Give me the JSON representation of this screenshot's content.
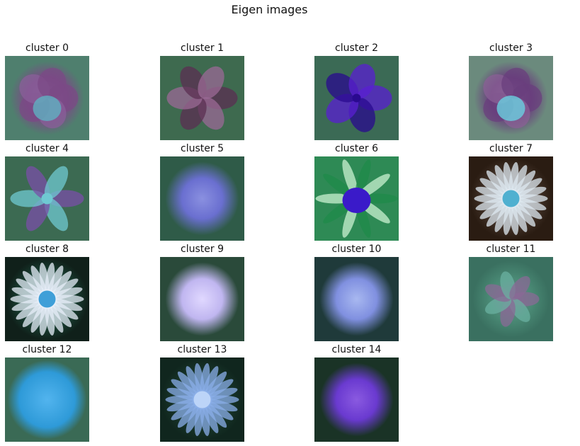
{
  "figure": {
    "title": "Eigen images"
  },
  "clusters": [
    {
      "label": "cluster 0",
      "bg": "#4f7f6e",
      "subject": "flower-purple-mix",
      "colors": [
        "#7b4a86",
        "#5fb0c0",
        "#8a5f9a"
      ]
    },
    {
      "label": "cluster 1",
      "bg": "#3e6a4f",
      "subject": "iris-flower",
      "colors": [
        "#5b2f52",
        "#9b6a95",
        "#6fa58a"
      ]
    },
    {
      "label": "cluster 2",
      "bg": "#3b6a55",
      "subject": "violet-pansy",
      "colors": [
        "#5a1fd1",
        "#2a0a8f",
        "#7ad09c"
      ]
    },
    {
      "label": "cluster 3",
      "bg": "#6b8a7d",
      "subject": "pansy-flower",
      "colors": [
        "#6a3f7d",
        "#6ad0e0",
        "#8a6095"
      ]
    },
    {
      "label": "cluster 4",
      "bg": "#3c6a52",
      "subject": "star-flower",
      "colors": [
        "#7a4fa8",
        "#6fc9d2",
        "#4a7a5a"
      ]
    },
    {
      "label": "cluster 5",
      "bg": "#2f5b48",
      "subject": "round-blur-blue",
      "colors": [
        "#6a6fd0",
        "#8a90e0",
        "#3f6a6a"
      ]
    },
    {
      "label": "cluster 6",
      "bg": "#2e8a55",
      "subject": "blue-bud",
      "colors": [
        "#3a1ac9",
        "#1f8a4a",
        "#c9f0d0"
      ]
    },
    {
      "label": "cluster 7",
      "bg": "#2a1c12",
      "subject": "white-daisy-dark",
      "colors": [
        "#dde8f0",
        "#4fb0d0",
        "#4a3a30"
      ]
    },
    {
      "label": "cluster 8",
      "bg": "#10201a",
      "subject": "white-daisy-blue",
      "colors": [
        "#e6eef8",
        "#3f9fd8",
        "#1a4a3a"
      ]
    },
    {
      "label": "cluster 9",
      "bg": "#2a4a3a",
      "subject": "round-blur-lilac",
      "colors": [
        "#c0b6f0",
        "#e0d8ff",
        "#3f6a55"
      ]
    },
    {
      "label": "cluster 10",
      "bg": "#1f3a3a",
      "subject": "round-blur-periwinkle",
      "colors": [
        "#8090e0",
        "#a8b8f0",
        "#2a4a4a"
      ]
    },
    {
      "label": "cluster 11",
      "bg": "#3a7060",
      "subject": "blurred-mix",
      "colors": [
        "#8a6a95",
        "#6ab0a0",
        "#4a8a75"
      ]
    },
    {
      "label": "cluster 12",
      "bg": "#3a6a55",
      "subject": "fluffy-blue",
      "colors": [
        "#2e9ad8",
        "#52b4ee",
        "#355a4a"
      ]
    },
    {
      "label": "cluster 13",
      "bg": "#10261e",
      "subject": "aster-blue",
      "colors": [
        "#8aaee8",
        "#bcd4f8",
        "#1a3a2c"
      ]
    },
    {
      "label": "cluster 14",
      "bg": "#1a3326",
      "subject": "round-blur-purple",
      "colors": [
        "#6a3ad0",
        "#8a5ae0",
        "#2a4a3a"
      ]
    }
  ]
}
